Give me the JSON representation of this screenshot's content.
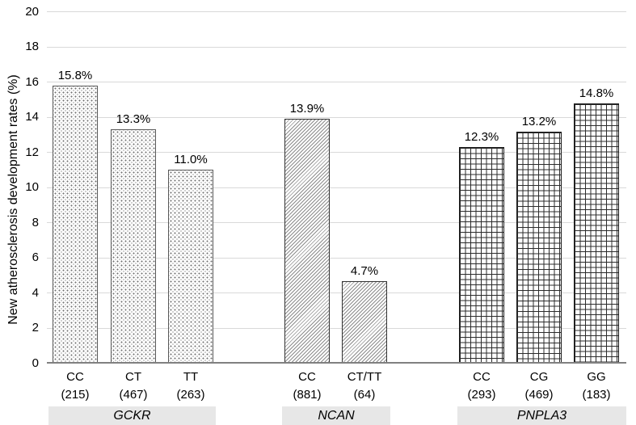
{
  "chart_data": {
    "type": "bar",
    "title": "",
    "ylabel": "New atherosclerosis development rates (%)",
    "xlabel": "",
    "ylim": [
      0,
      20
    ],
    "ytick_step": 2,
    "yticks": [
      0,
      2,
      4,
      6,
      8,
      10,
      12,
      14,
      16,
      18,
      20
    ],
    "grid": true,
    "legend": "none",
    "groups": [
      {
        "gene": "GCKR",
        "pattern": "dots",
        "bars": [
          {
            "genotype": "CC",
            "n": "(215)",
            "value": 15.8,
            "label": "15.8%"
          },
          {
            "genotype": "CT",
            "n": "(467)",
            "value": 13.3,
            "label": "13.3%"
          },
          {
            "genotype": "TT",
            "n": "(263)",
            "value": 11.0,
            "label": "11.0%"
          }
        ]
      },
      {
        "gene": "NCAN",
        "pattern": "diagonal-hatch",
        "bars": [
          {
            "genotype": "CC",
            "n": "(881)",
            "value": 13.9,
            "label": "13.9%"
          },
          {
            "genotype": "CT/TT",
            "n": "(64)",
            "value": 4.7,
            "label": "4.7%"
          }
        ]
      },
      {
        "gene": "PNPLA3",
        "pattern": "grid",
        "bars": [
          {
            "genotype": "CC",
            "n": "(293)",
            "value": 12.3,
            "label": "12.3%"
          },
          {
            "genotype": "CG",
            "n": "(469)",
            "value": 13.2,
            "label": "13.2%"
          },
          {
            "genotype": "GG",
            "n": "(183)",
            "value": 14.8,
            "label": "14.8%"
          }
        ]
      }
    ],
    "colors": {
      "gridline": "#d9d9d9",
      "axis_line": "#808080",
      "band_bg": "#e7e7e7",
      "text": "#000000",
      "bar_fill": "#ffffff"
    }
  }
}
